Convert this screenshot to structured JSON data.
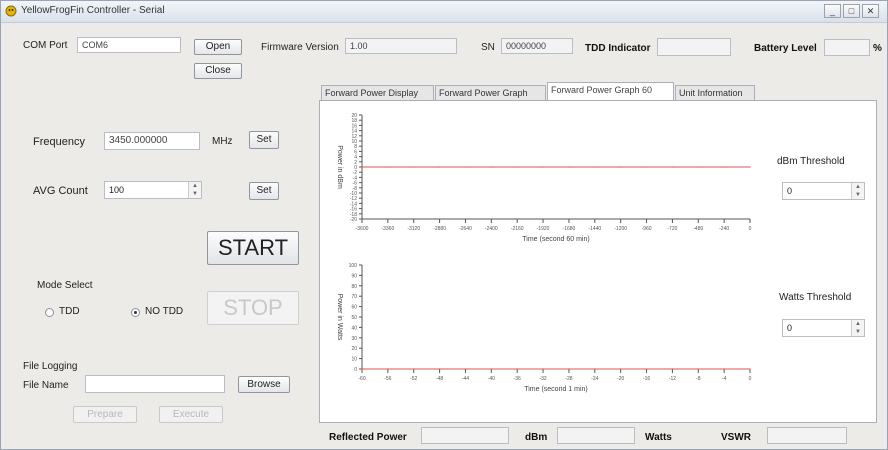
{
  "window": {
    "title": "YellowFrogFin Controller - Serial",
    "controls": {
      "minimize": "_",
      "maximize": "□",
      "close": "✕"
    }
  },
  "top": {
    "com_port_label": "COM Port",
    "com_port_value": "COM6",
    "open_label": "Open",
    "close_label": "Close",
    "firmware_label": "Firmware Version",
    "firmware_value": "1.00",
    "sn_label": "SN",
    "sn_value": "00000000",
    "tdd_indicator_label": "TDD Indicator",
    "battery_label": "Battery Level",
    "battery_unit": "%"
  },
  "controls": {
    "frequency_label": "Frequency",
    "frequency_value": "3450.000000",
    "frequency_unit": "MHz",
    "frequency_set": "Set",
    "avg_label": "AVG Count",
    "avg_value": "100",
    "avg_set": "Set",
    "start_label": "START",
    "stop_label": "STOP",
    "mode_select_label": "Mode Select",
    "mode_tdd": "TDD",
    "mode_no_tdd": "NO TDD",
    "file_logging_label": "File Logging",
    "file_name_label": "File Name",
    "file_name_value": "",
    "browse_label": "Browse",
    "btn_disabled_1": "Prepare",
    "btn_disabled_2": "Execute"
  },
  "tabs": [
    {
      "label": "Forward Power Display",
      "active": false
    },
    {
      "label": "Forward Power Graph",
      "active": false
    },
    {
      "label": "Forward Power Graph 60",
      "active": true
    },
    {
      "label": "Unit Information",
      "active": false
    }
  ],
  "side": {
    "dbm_threshold_label": "dBm Threshold",
    "dbm_threshold_value": "0",
    "watts_threshold_label": "Watts Threshold",
    "watts_threshold_value": "0"
  },
  "bottom": {
    "reflected_label": "Reflected Power",
    "reflected_value": "",
    "dbm_label": "dBm",
    "dbm_value": "",
    "watts_label": "Watts",
    "vswr_label": "VSWR",
    "vswr_value": ""
  },
  "chart_data": [
    {
      "type": "line",
      "xlabel": "Time (second 60 min)",
      "ylabel": "Power in dBm",
      "x": [
        -3600,
        -3360,
        -3120,
        -2880,
        -2640,
        -2400,
        -2160,
        -1920,
        -1680,
        -1440,
        -1200,
        -960,
        -720,
        -480,
        -240,
        0
      ],
      "xlim": [
        -3600,
        0
      ],
      "ylim": [
        -20,
        20
      ],
      "y_ticks": [
        20,
        18,
        16,
        14,
        12,
        10,
        8,
        6,
        4,
        2,
        0,
        -2,
        -4,
        -6,
        -8,
        -10,
        -12,
        -14,
        -16,
        -18,
        -20
      ],
      "series": [
        {
          "values": [
            0,
            0,
            0,
            0,
            0,
            0,
            0,
            0,
            0,
            0,
            0,
            0,
            0,
            0,
            0,
            0
          ],
          "color": "#d9534f"
        }
      ],
      "grid": false
    },
    {
      "type": "line",
      "xlabel": "Time (second 1 min)",
      "ylabel": "Power in Watts",
      "x": [
        -60,
        -56,
        -52,
        -48,
        -44,
        -40,
        -36,
        -32,
        -28,
        -24,
        -20,
        -16,
        -12,
        -8,
        -4,
        0
      ],
      "xlim": [
        -60,
        0
      ],
      "ylim": [
        0,
        100
      ],
      "y_ticks": [
        100,
        90,
        80,
        70,
        60,
        50,
        40,
        30,
        20,
        10,
        0
      ],
      "series": [
        {
          "values": [
            0,
            0,
            0,
            0,
            0,
            0,
            0,
            0,
            0,
            0,
            0,
            0,
            0,
            0,
            0,
            0
          ],
          "color": "#d9534f"
        }
      ],
      "grid": false
    }
  ]
}
